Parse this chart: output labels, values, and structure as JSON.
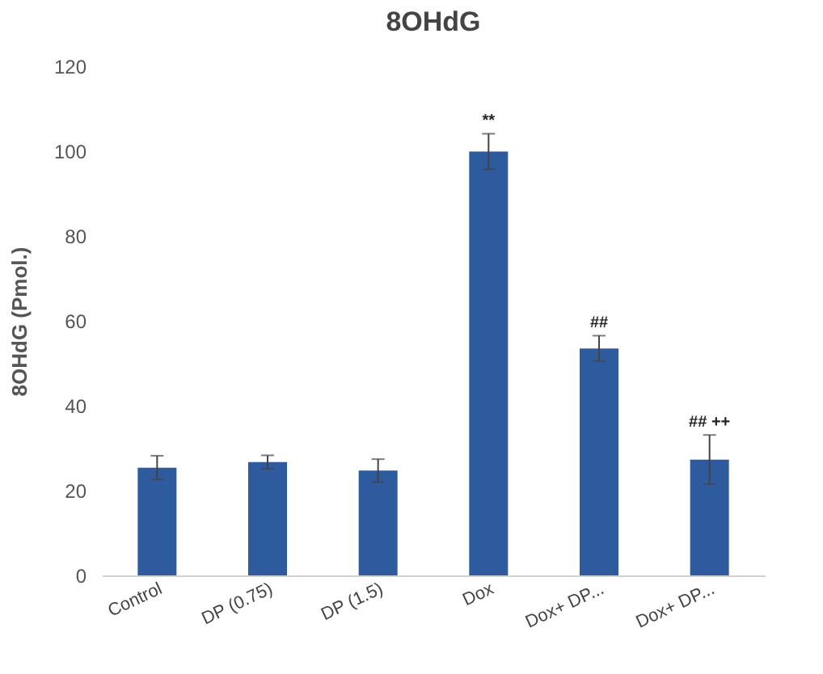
{
  "chart_data": {
    "type": "bar",
    "title": "8OHdG",
    "ylabel": "8OHdG (Pmol.)",
    "categories": [
      "Control",
      "DP (0.75)",
      "DP (1.5)",
      "Dox",
      "Dox+ DP...",
      "Dox+ DP..."
    ],
    "values": [
      25.4,
      26.7,
      24.7,
      99.9,
      53.5,
      27.3
    ],
    "errors": [
      2.8,
      1.6,
      2.7,
      4.2,
      3,
      5.8
    ],
    "color": "#2e5a9e",
    "ylim": [
      0,
      120
    ],
    "yticks": [
      0,
      20,
      40,
      60,
      80,
      100,
      120
    ],
    "grid": false,
    "annotations": [
      {
        "text": "**",
        "x": "Dox",
        "y": 104.1
      },
      {
        "text": "##",
        "x": "Dox+ DP...",
        "y": 56.5
      },
      {
        "text": "## ++",
        "y": 33.1
      }
    ]
  }
}
